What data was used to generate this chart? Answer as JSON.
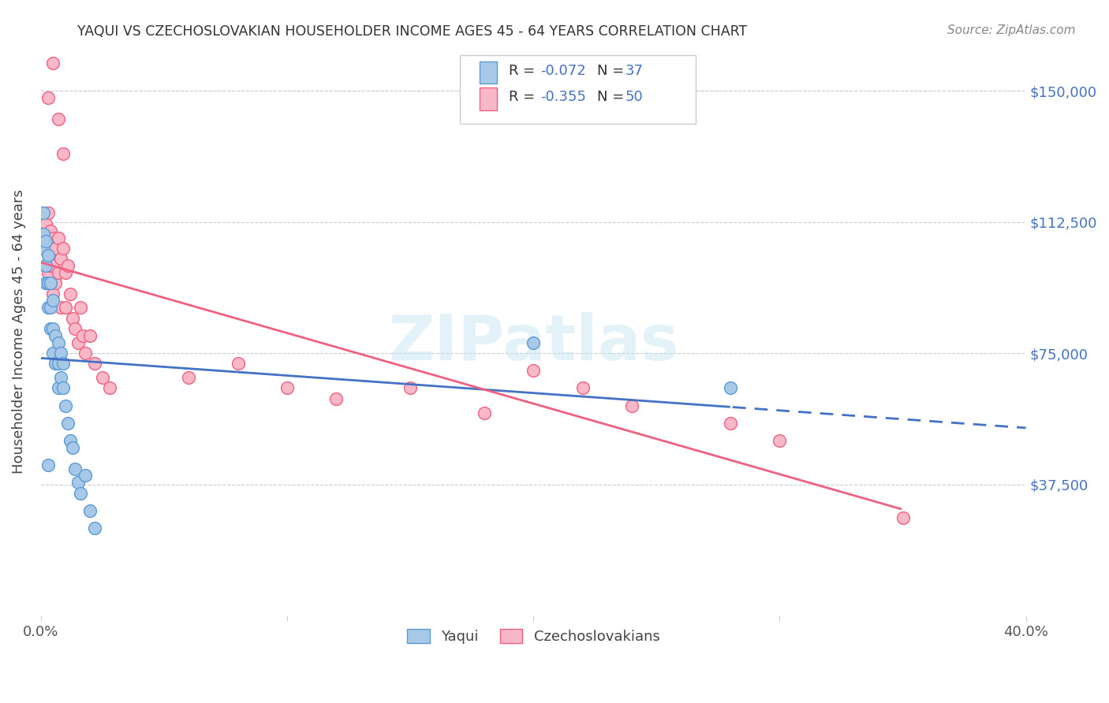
{
  "title": "YAQUI VS CZECHOSLOVAKIAN HOUSEHOLDER INCOME AGES 45 - 64 YEARS CORRELATION CHART",
  "source": "Source: ZipAtlas.com",
  "ylabel": "Householder Income Ages 45 - 64 years",
  "x_min": 0.0,
  "x_max": 0.4,
  "y_min": 0,
  "y_max": 162500,
  "y_ticks": [
    37500,
    75000,
    112500,
    150000
  ],
  "y_tick_labels": [
    "$37,500",
    "$75,000",
    "$112,500",
    "$150,000"
  ],
  "x_ticks": [
    0.0,
    0.1,
    0.2,
    0.3,
    0.4
  ],
  "x_tick_labels": [
    "0.0%",
    "",
    "",
    "",
    "40.0%"
  ],
  "color_yaqui_fill": "#a8c8e8",
  "color_yaqui_edge": "#5b9bd5",
  "color_czech_fill": "#f9b8c8",
  "color_czech_edge": "#f06080",
  "color_yaqui_line": "#4472c4",
  "color_czech_line": "#f06080",
  "watermark": "ZIPatlas",
  "yaqui_x": [
    0.001,
    0.001,
    0.002,
    0.002,
    0.002,
    0.003,
    0.003,
    0.003,
    0.004,
    0.004,
    0.004,
    0.005,
    0.005,
    0.005,
    0.006,
    0.006,
    0.007,
    0.007,
    0.007,
    0.008,
    0.008,
    0.009,
    0.009,
    0.01,
    0.011,
    0.012,
    0.013,
    0.014,
    0.015,
    0.016,
    0.018,
    0.02,
    0.022,
    0.2,
    0.28,
    0.001,
    0.003
  ],
  "yaqui_y": [
    109000,
    105000,
    107000,
    100000,
    95000,
    103000,
    95000,
    88000,
    95000,
    88000,
    82000,
    90000,
    82000,
    75000,
    80000,
    72000,
    78000,
    72000,
    65000,
    75000,
    68000,
    72000,
    65000,
    60000,
    55000,
    50000,
    48000,
    42000,
    38000,
    35000,
    40000,
    30000,
    25000,
    78000,
    65000,
    115000,
    43000
  ],
  "czech_x": [
    0.001,
    0.001,
    0.002,
    0.002,
    0.002,
    0.003,
    0.003,
    0.003,
    0.004,
    0.004,
    0.005,
    0.005,
    0.005,
    0.006,
    0.006,
    0.007,
    0.007,
    0.008,
    0.008,
    0.009,
    0.01,
    0.01,
    0.011,
    0.012,
    0.013,
    0.014,
    0.015,
    0.016,
    0.017,
    0.018,
    0.02,
    0.022,
    0.025,
    0.028,
    0.06,
    0.08,
    0.1,
    0.12,
    0.15,
    0.18,
    0.2,
    0.22,
    0.24,
    0.28,
    0.003,
    0.005,
    0.007,
    0.009,
    0.35,
    0.3
  ],
  "czech_y": [
    110000,
    105000,
    112000,
    108000,
    100000,
    115000,
    108000,
    98000,
    110000,
    100000,
    108000,
    100000,
    92000,
    105000,
    95000,
    108000,
    98000,
    102000,
    88000,
    105000,
    98000,
    88000,
    100000,
    92000,
    85000,
    82000,
    78000,
    88000,
    80000,
    75000,
    80000,
    72000,
    68000,
    65000,
    68000,
    72000,
    65000,
    62000,
    65000,
    58000,
    70000,
    65000,
    60000,
    55000,
    148000,
    158000,
    142000,
    132000,
    28000,
    50000
  ]
}
